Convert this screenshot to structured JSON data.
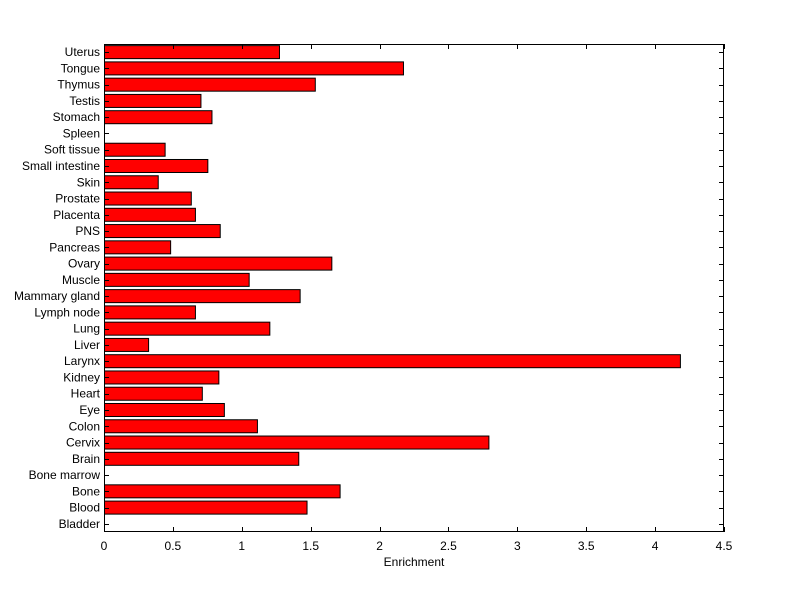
{
  "chart_data": {
    "type": "bar",
    "orientation": "horizontal",
    "categories": [
      "Bladder",
      "Blood",
      "Bone",
      "Bone marrow",
      "Brain",
      "Cervix",
      "Colon",
      "Eye",
      "Heart",
      "Kidney",
      "Larynx",
      "Liver",
      "Lung",
      "Lymph node",
      "Mammary gland",
      "Muscle",
      "Ovary",
      "Pancreas",
      "PNS",
      "Placenta",
      "Prostate",
      "Skin",
      "Small intestine",
      "Soft tissue",
      "Spleen",
      "Stomach",
      "Testis",
      "Thymus",
      "Tongue",
      "Uterus"
    ],
    "values": [
      0,
      1.47,
      1.71,
      0,
      1.41,
      2.79,
      1.11,
      0.87,
      0.71,
      0.83,
      4.18,
      0.32,
      1.2,
      0.66,
      1.42,
      1.05,
      1.65,
      0.48,
      0.84,
      0.66,
      0.63,
      0.39,
      0.75,
      0.44,
      0,
      0.78,
      0.7,
      1.53,
      2.17,
      1.27
    ],
    "xlabel": "Enrichment",
    "xlim": [
      0,
      4.5
    ],
    "xticks": [
      0,
      0.5,
      1,
      1.5,
      2,
      2.5,
      3,
      3.5,
      4,
      4.5
    ],
    "xtick_labels": [
      "0",
      "0.5",
      "1",
      "1.5",
      "2",
      "2.5",
      "3",
      "3.5",
      "4",
      "4.5"
    ],
    "grid": false,
    "bar_color": "#ff0000",
    "edge_color": "#000000"
  }
}
